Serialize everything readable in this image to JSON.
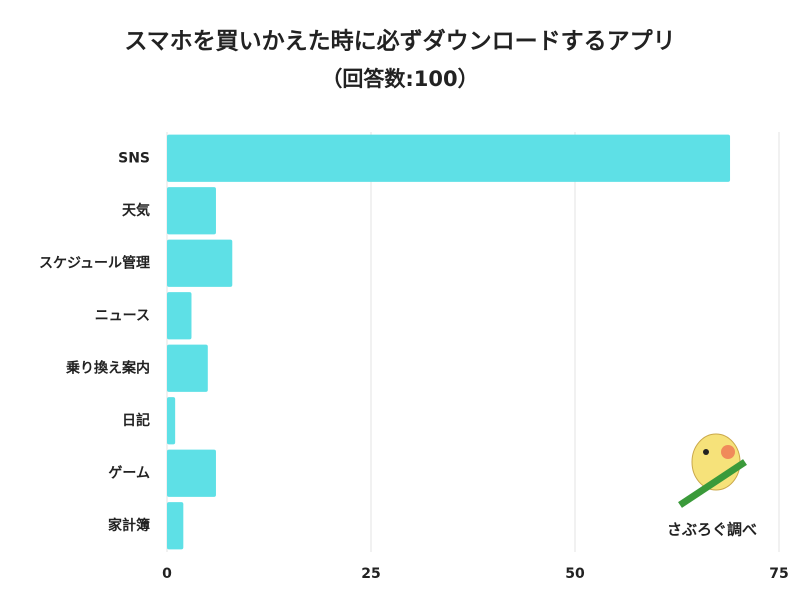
{
  "chart_data": {
    "type": "bar",
    "orientation": "horizontal",
    "title": "スマホを買いかえた時に必ずダウンロードするアプリ",
    "subtitle": "（回答数:100）",
    "categories": [
      "SNS",
      "天気",
      "スケジュール管理",
      "ニュース",
      "乗り換え案内",
      "日記",
      "ゲーム",
      "家計簿"
    ],
    "values": [
      69,
      6,
      8,
      3,
      5,
      1,
      6,
      2
    ],
    "color": "#5ee0e6",
    "xlim": [
      0,
      75
    ],
    "xticks": [
      0,
      25,
      50,
      75
    ],
    "grid": true,
    "annotation": "さぶろぐ調べ"
  }
}
